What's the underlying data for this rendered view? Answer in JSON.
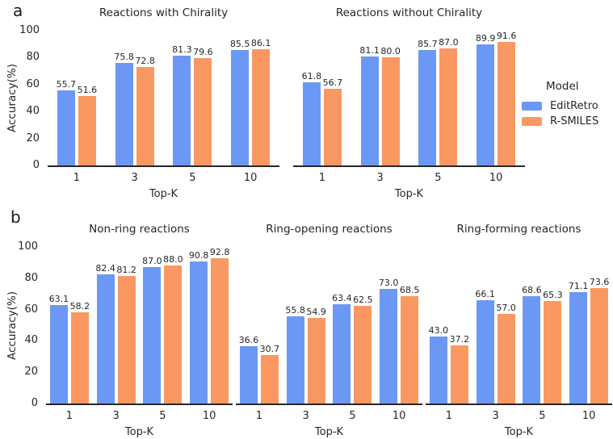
{
  "figure": {
    "panels": [
      {
        "label": "a"
      },
      {
        "label": "b"
      }
    ],
    "ylabel": "Accuracy(%)",
    "xlabel": "Top-K",
    "legend": {
      "title": "Model",
      "entries": [
        {
          "label": "EditRetro",
          "color": "#6c98f5"
        },
        {
          "label": "R-SMILES",
          "color": "#fa9862"
        }
      ]
    }
  },
  "colors": {
    "editretro_blue": "#6c98f5",
    "rsmiles_orange": "#fa9862",
    "axis": "#262626",
    "text": "#262626",
    "background": "#ffffff"
  },
  "chart_data": [
    {
      "type": "bar",
      "panel": "a",
      "title": "Reactions with Chirality",
      "categories": [
        "1",
        "3",
        "5",
        "10"
      ],
      "series": [
        {
          "name": "EditRetro",
          "values": [
            55.7,
            75.8,
            81.3,
            85.5
          ]
        },
        {
          "name": "R-SMILES",
          "values": [
            51.6,
            72.8,
            79.6,
            86.1
          ]
        }
      ],
      "xlabel": "Top-K",
      "ylabel": "Accuracy(%)",
      "ylim": [
        0,
        100
      ],
      "yticks": [
        0,
        20,
        40,
        60,
        80,
        100
      ],
      "grid": false,
      "show_yaxis_labels": true
    },
    {
      "type": "bar",
      "panel": "a",
      "title": "Reactions without Chirality",
      "categories": [
        "1",
        "3",
        "5",
        "10"
      ],
      "series": [
        {
          "name": "EditRetro",
          "values": [
            61.8,
            81.1,
            85.7,
            89.9
          ]
        },
        {
          "name": "R-SMILES",
          "values": [
            56.7,
            80.0,
            87.0,
            91.6
          ]
        }
      ],
      "xlabel": "Top-K",
      "ylabel": "Accuracy(%)",
      "ylim": [
        0,
        100
      ],
      "yticks": [
        0,
        20,
        40,
        60,
        80,
        100
      ],
      "grid": false,
      "show_yaxis_labels": false
    },
    {
      "type": "bar",
      "panel": "b",
      "title": "Non-ring reactions",
      "categories": [
        "1",
        "3",
        "5",
        "10"
      ],
      "series": [
        {
          "name": "EditRetro",
          "values": [
            63.1,
            82.4,
            87.0,
            90.8
          ]
        },
        {
          "name": "R-SMILES",
          "values": [
            58.2,
            81.2,
            88.0,
            92.8
          ]
        }
      ],
      "xlabel": "Top-K",
      "ylabel": "Accuracy(%)",
      "ylim": [
        0,
        100
      ],
      "yticks": [
        0,
        20,
        40,
        60,
        80,
        100
      ],
      "grid": false,
      "show_yaxis_labels": true
    },
    {
      "type": "bar",
      "panel": "b",
      "title": "Ring-opening reactions",
      "categories": [
        "1",
        "3",
        "5",
        "10"
      ],
      "series": [
        {
          "name": "EditRetro",
          "values": [
            36.6,
            55.8,
            63.4,
            73.0
          ]
        },
        {
          "name": "R-SMILES",
          "values": [
            30.7,
            54.9,
            62.5,
            68.5
          ]
        }
      ],
      "xlabel": "Top-K",
      "ylabel": "Accuracy(%)",
      "ylim": [
        0,
        100
      ],
      "yticks": [
        0,
        20,
        40,
        60,
        80,
        100
      ],
      "grid": false,
      "show_yaxis_labels": false
    },
    {
      "type": "bar",
      "panel": "b",
      "title": "Ring-forming reactions",
      "categories": [
        "1",
        "3",
        "5",
        "10"
      ],
      "series": [
        {
          "name": "EditRetro",
          "values": [
            43.0,
            66.1,
            68.6,
            71.1
          ]
        },
        {
          "name": "R-SMILES",
          "values": [
            37.2,
            57.0,
            65.3,
            73.6
          ]
        }
      ],
      "xlabel": "Top-K",
      "ylabel": "Accuracy(%)",
      "ylim": [
        0,
        100
      ],
      "yticks": [
        0,
        20,
        40,
        60,
        80,
        100
      ],
      "grid": false,
      "show_yaxis_labels": false
    }
  ]
}
